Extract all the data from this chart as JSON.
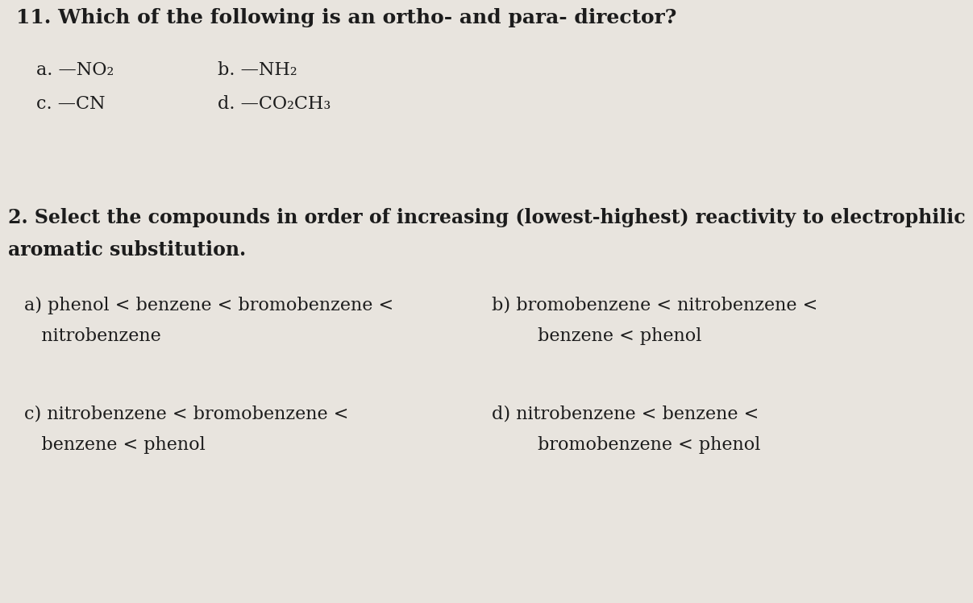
{
  "bg_color": "#e8e4de",
  "text_color": "#1c1c1c",
  "q1_title": "11. Which of the following is an ortho- and para- director?",
  "q1_a": "a. —NO₂",
  "q1_b": "b. —NH₂",
  "q1_c": "c. —CN",
  "q1_d": "d. —CO₂CH₃",
  "q2_line1": "2. Select the compounds in order of increasing (lowest-highest) reactivity to electrophilic",
  "q2_line2": "aromatic substitution.",
  "qa_line1": "a) phenol < benzene < bromobenzene <",
  "qa_line2": "   nitrobenzene",
  "qb_line1": "b) bromobenzene < nitrobenzene <",
  "qb_line2": "        benzene < phenol",
  "qc_line1": "c) nitrobenzene < bromobenzene <",
  "qc_line2": "   benzene < phenol",
  "qd_line1": "d) nitrobenzene < benzene <",
  "qd_line2": "        bromobenzene < phenol",
  "fs_title": 18,
  "fs_opts": 16,
  "fs_q2hdr": 17
}
